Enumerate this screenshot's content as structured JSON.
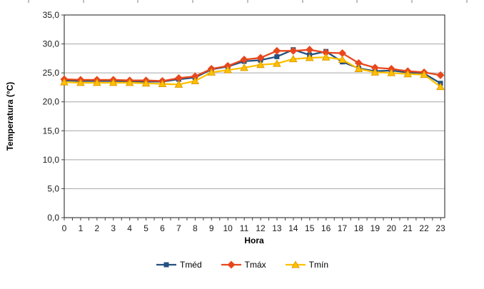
{
  "chart_data": {
    "type": "line",
    "title": "",
    "xlabel": "Hora",
    "ylabel": "Temperatura (°C)",
    "x": [
      0,
      1,
      2,
      3,
      4,
      5,
      6,
      7,
      8,
      9,
      10,
      11,
      12,
      13,
      14,
      15,
      16,
      17,
      18,
      19,
      20,
      21,
      22,
      23
    ],
    "xtick_labels": [
      "0",
      "1",
      "2",
      "3",
      "4",
      "5",
      "6",
      "7",
      "8",
      "9",
      "10",
      "11",
      "12",
      "13",
      "14",
      "15",
      "16",
      "17",
      "18",
      "19",
      "20",
      "21",
      "22",
      "23"
    ],
    "ylim": [
      0,
      35
    ],
    "ytick_step": 5,
    "ytick_labels": [
      "0,0",
      "5,0",
      "10,0",
      "15,0",
      "20,0",
      "25,0",
      "30,0",
      "35,0"
    ],
    "grid": "horizontal-gridlines",
    "legend_position": "bottom",
    "series": [
      {
        "name": "Tméd",
        "marker": "square",
        "color": "#24517F",
        "values": [
          23.7,
          23.6,
          23.6,
          23.6,
          23.5,
          23.5,
          23.5,
          23.9,
          24.2,
          25.6,
          26.1,
          27.0,
          27.2,
          27.8,
          29.0,
          28.1,
          28.7,
          26.9,
          25.8,
          25.3,
          25.4,
          25.1,
          24.9,
          23.2
        ]
      },
      {
        "name": "Tmáx",
        "marker": "diamond",
        "color": "#E8471D",
        "values": [
          23.9,
          23.8,
          23.8,
          23.8,
          23.7,
          23.7,
          23.6,
          24.1,
          24.4,
          25.7,
          26.2,
          27.3,
          27.6,
          28.8,
          28.8,
          29.0,
          28.5,
          28.4,
          26.7,
          25.9,
          25.7,
          25.3,
          25.1,
          24.6
        ]
      },
      {
        "name": "Tmín",
        "marker": "triangle",
        "color": "#FFC000",
        "marker_stroke": "#DD9C00",
        "values": [
          23.4,
          23.3,
          23.3,
          23.3,
          23.3,
          23.2,
          23.1,
          23.0,
          23.6,
          25.1,
          25.5,
          25.9,
          26.4,
          26.6,
          27.4,
          27.6,
          27.7,
          27.3,
          25.7,
          25.1,
          25.0,
          24.8,
          24.7,
          22.6
        ]
      }
    ],
    "colors": {
      "gridline": "#A6A6A6",
      "plot_border": "#404040",
      "axis_text": "#1a1a1a",
      "top_ruler_tick": "#808080"
    },
    "decor": {
      "top_ruler_tick_xs": [
        40,
        117,
        193,
        270,
        347,
        424,
        500,
        577,
        654
      ]
    }
  }
}
